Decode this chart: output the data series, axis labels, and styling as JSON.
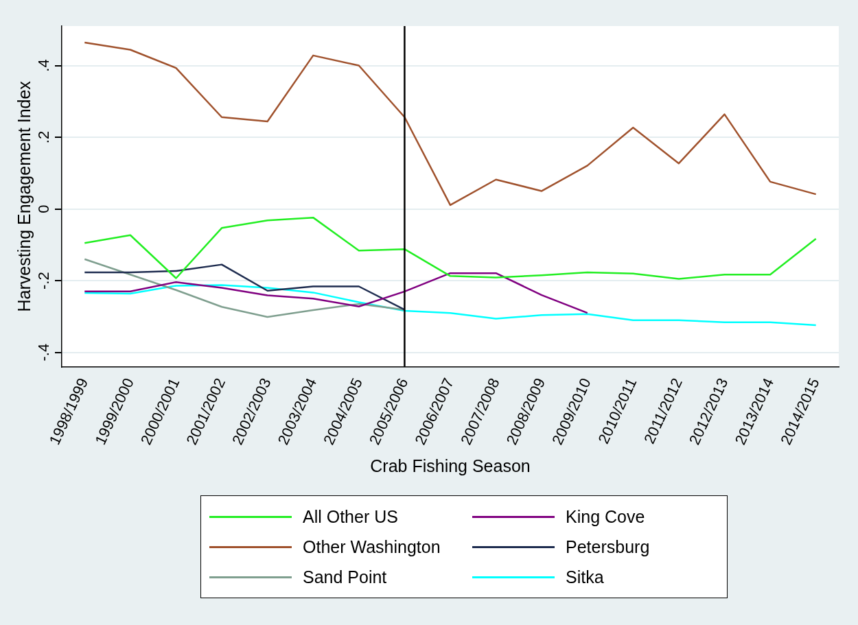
{
  "chart_data": {
    "type": "line",
    "xlabel": "Crab Fishing Season",
    "ylabel": "Harvesting Engagement Index",
    "categories": [
      "1998/1999",
      "1999/2000",
      "2000/2001",
      "2001/2002",
      "2002/2003",
      "2003/2004",
      "2004/2005",
      "2005/2006",
      "2006/2007",
      "2007/2008",
      "2008/2009",
      "2009/2010",
      "2010/2011",
      "2011/2012",
      "2012/2013",
      "2013/2014",
      "2014/2015"
    ],
    "series": [
      {
        "name": "All Other US",
        "color": "#22ee22",
        "values": [
          -0.095,
          -0.073,
          -0.193,
          -0.053,
          -0.032,
          -0.024,
          -0.116,
          -0.112,
          -0.187,
          -0.191,
          -0.185,
          -0.177,
          -0.18,
          -0.195,
          -0.183,
          -0.183,
          -0.083
        ]
      },
      {
        "name": "King Cove",
        "color": "#800080",
        "values": [
          -0.23,
          -0.23,
          -0.204,
          -0.22,
          -0.241,
          -0.25,
          -0.272,
          -0.23,
          -0.179,
          -0.179,
          -0.24,
          -0.29,
          null,
          null,
          null,
          null,
          null
        ]
      },
      {
        "name": "Other Washington",
        "color": "#a0522d",
        "values": [
          0.464,
          0.444,
          0.393,
          0.256,
          0.244,
          0.428,
          0.4,
          0.256,
          0.011,
          0.082,
          0.05,
          0.121,
          0.227,
          0.127,
          0.264,
          0.076,
          0.041
        ]
      },
      {
        "name": "Petersburg",
        "color": "#1f2d50",
        "values": [
          -0.177,
          -0.177,
          -0.173,
          -0.155,
          -0.228,
          -0.216,
          -0.216,
          -0.281,
          null,
          null,
          null,
          null,
          null,
          null,
          null,
          null,
          null
        ]
      },
      {
        "name": "Sand Point",
        "color": "#7f9f8f",
        "values": [
          -0.14,
          -0.183,
          -0.226,
          -0.273,
          -0.301,
          -0.282,
          -0.265,
          -0.281,
          null,
          null,
          null,
          null,
          null,
          null,
          null,
          null,
          null
        ]
      },
      {
        "name": "Sitka",
        "color": "#00ffff",
        "values": [
          -0.234,
          -0.236,
          -0.214,
          -0.212,
          -0.22,
          -0.233,
          -0.26,
          -0.284,
          -0.29,
          -0.306,
          -0.296,
          -0.293,
          -0.31,
          -0.31,
          -0.316,
          -0.316,
          -0.324
        ]
      }
    ],
    "ylim": [
      -0.44,
      0.51
    ],
    "yticks": [
      {
        "value": -0.4,
        "label": "-.4"
      },
      {
        "value": -0.2,
        "label": "-.2"
      },
      0,
      {
        "value": 0.2,
        "label": ".2"
      },
      {
        "value": 0.4,
        "label": ".4"
      }
    ],
    "ref_lines": [
      {
        "axis": "x",
        "value": "2005/2006",
        "color": "#000000"
      }
    ],
    "grid": "y",
    "legend": "bottom",
    "marker": "none",
    "line_style": "solid"
  }
}
